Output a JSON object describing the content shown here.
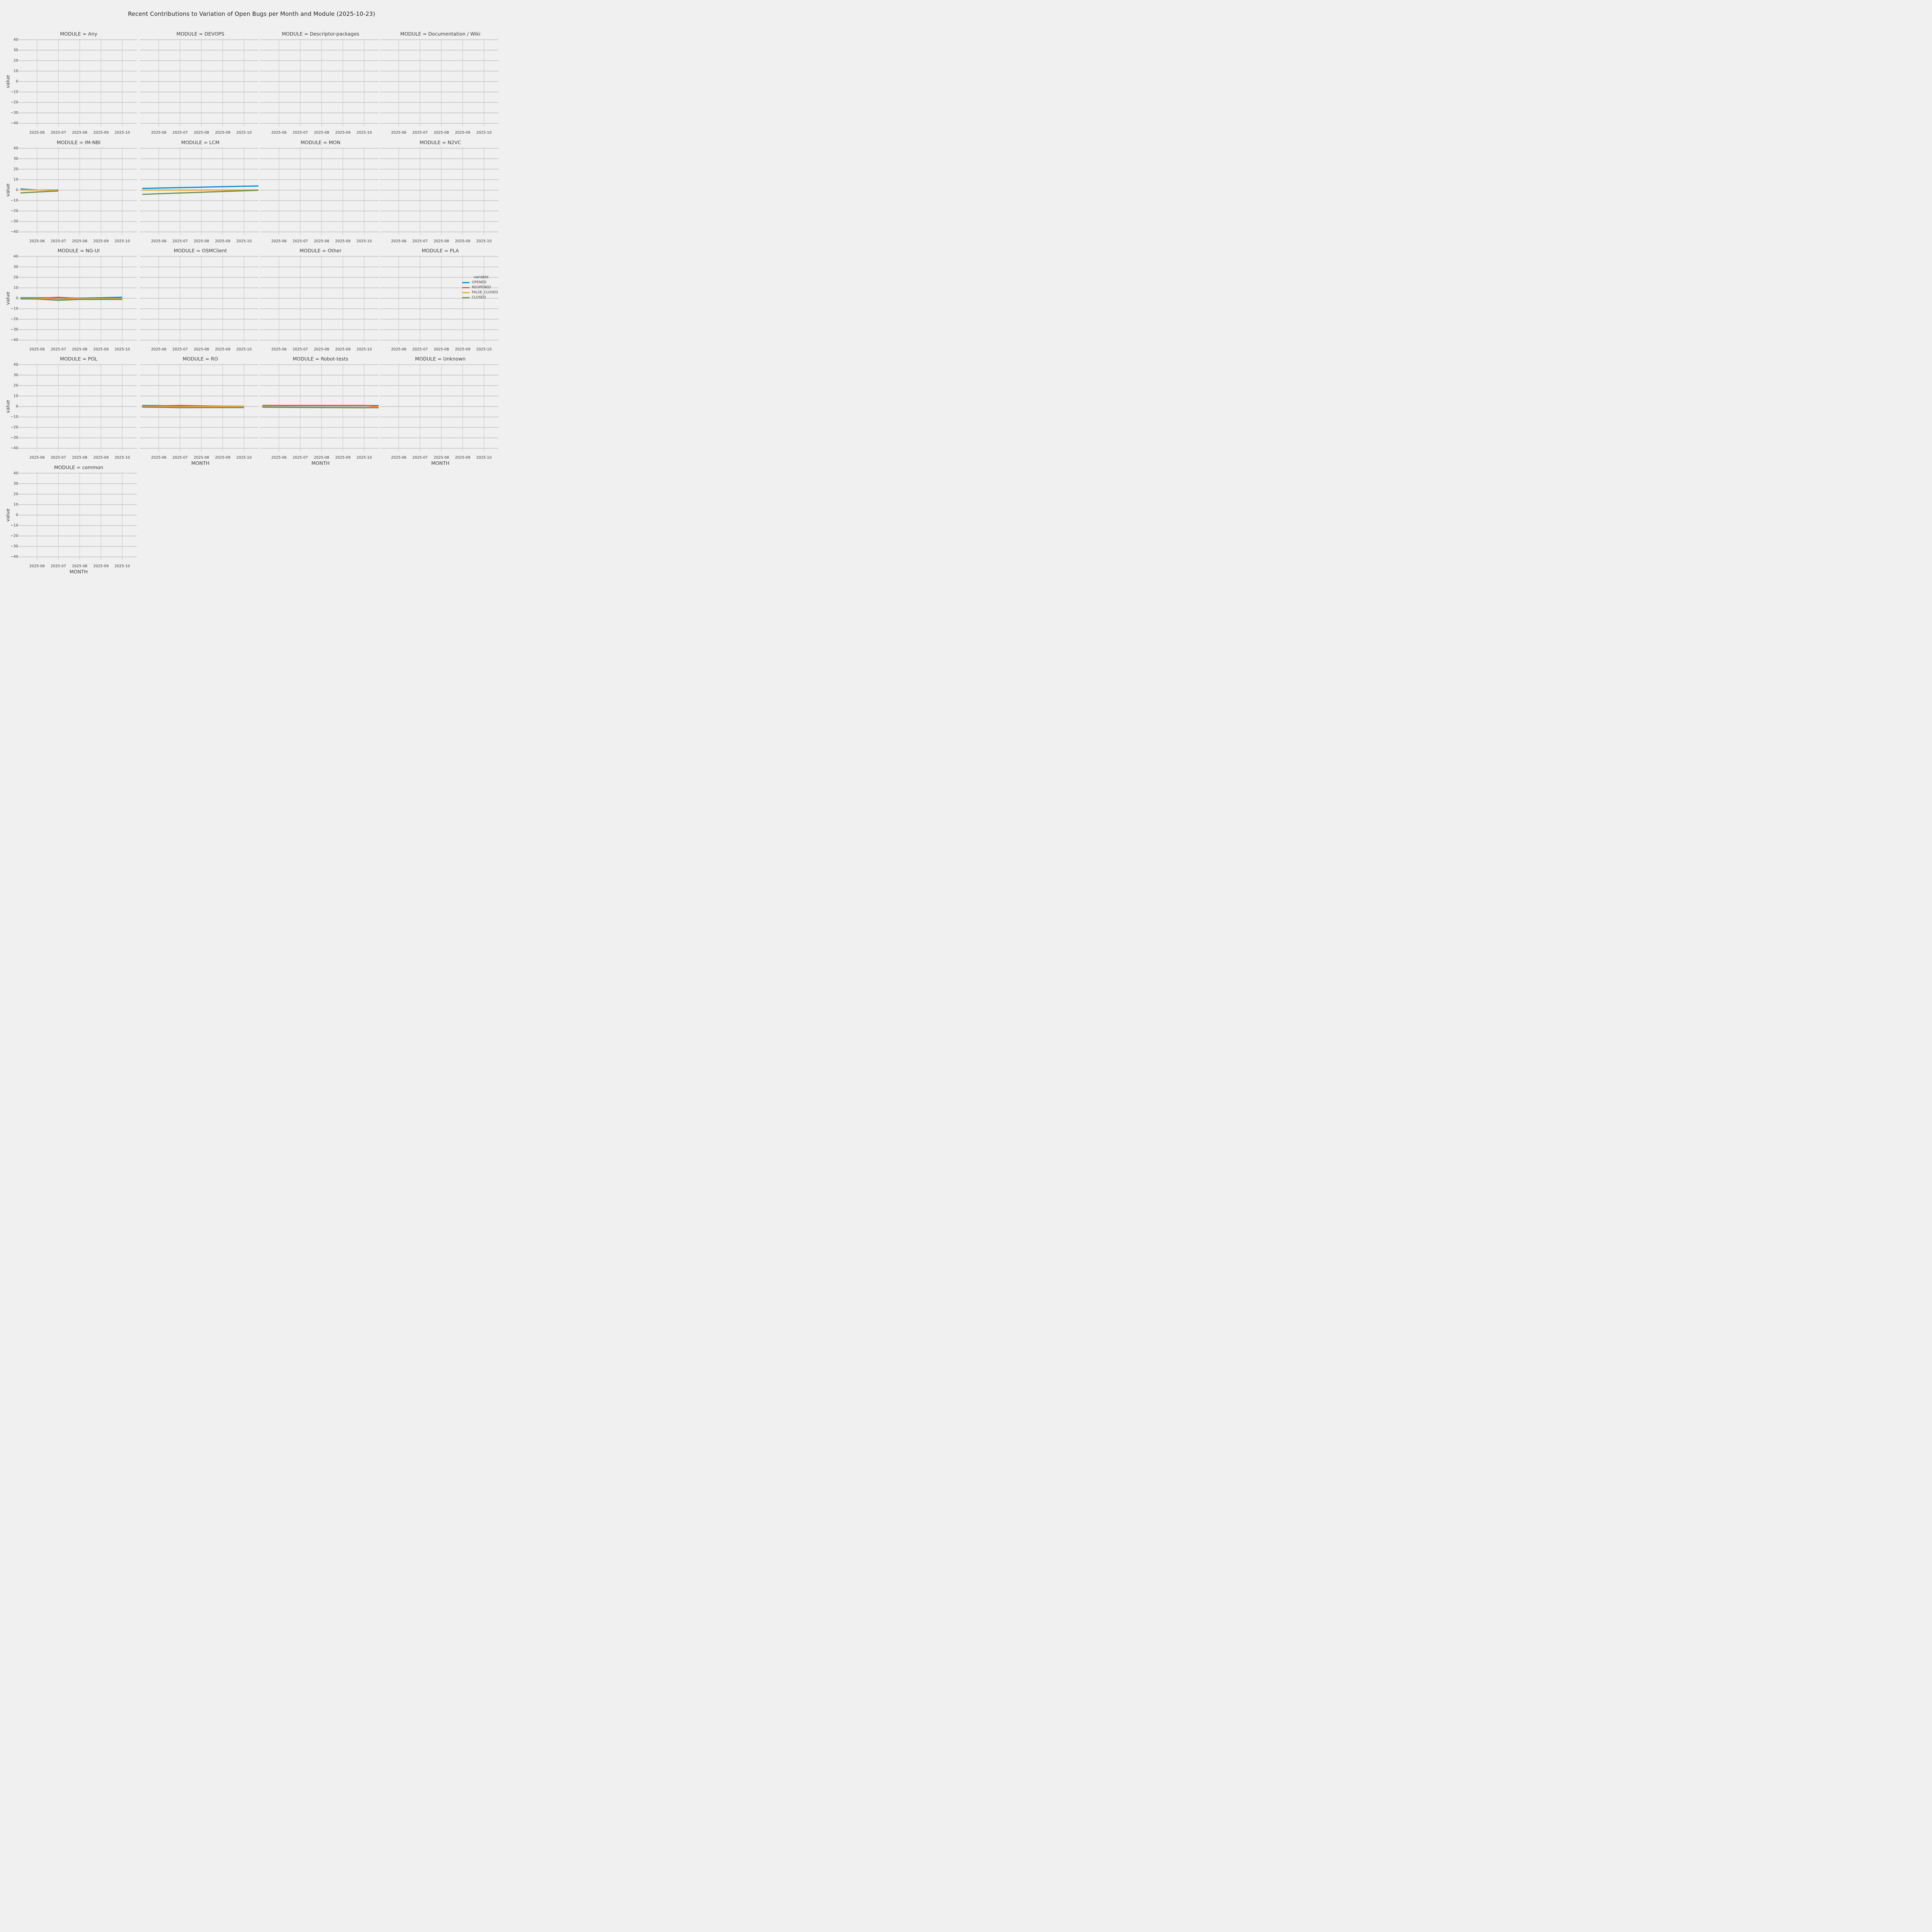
{
  "title": "Recent Contributions to Variation of Open Bugs per Month and Module (2025-10-23)",
  "style": {
    "background": "#f0f0f0",
    "grid_color": "#cbcbcb",
    "text_color": "#3c3c3c",
    "series_colors": {
      "OPENED": "#008fd5",
      "REOPENED": "#fc4f30",
      "FALSE_CLOSED": "#e5ae38",
      "CLOSED": "#6d904f"
    }
  },
  "legend": {
    "title": "variable",
    "entries": [
      {
        "label": "OPENED",
        "color": "#008fd5"
      },
      {
        "label": "REOPENED",
        "color": "#fc4f30"
      },
      {
        "label": "FALSE_CLOSED",
        "color": "#e5ae38"
      },
      {
        "label": "CLOSED",
        "color": "#6d904f"
      }
    ]
  },
  "chart_data": {
    "type": "line",
    "title": "Recent Contributions to Variation of Open Bugs per Month and Module (2025-10-23)",
    "xlabel": "MONTH",
    "ylabel": "value",
    "ylim": [
      -41,
      41
    ],
    "yticks": [
      40,
      30,
      20,
      10,
      0,
      -10,
      -20,
      -30,
      -40
    ],
    "ytick_labels": [
      "40",
      "30",
      "20",
      "10",
      "0",
      "−10",
      "−20",
      "−30",
      "−40"
    ],
    "xticks": [
      "2025-06",
      "2025-07",
      "2025-08",
      "2025-09",
      "2025-10"
    ],
    "x_unit": "month index: 0=2025-05, 1=2025-06, 2=2025-07, 3=2025-08, 4=2025-09, 5=2025-10, 5.7=2025-10-23 (lines clipped at axes edges)",
    "series_names": [
      "OPENED",
      "REOPENED",
      "FALSE_CLOSED",
      "CLOSED"
    ],
    "grid": true,
    "legend_position": "right of PLA facet",
    "facets": [
      {
        "module": "Any",
        "title": "MODULE = Any",
        "series": {}
      },
      {
        "module": "DEVOPS",
        "title": "MODULE = DEVOPS",
        "series": {}
      },
      {
        "module": "Descriptor-packages",
        "title": "MODULE = Descriptor-packages",
        "series": {}
      },
      {
        "module": "Documentation / Wiki",
        "title": "MODULE = Documentation / Wiki",
        "series": {}
      },
      {
        "module": "IM-NBI",
        "title": "MODULE = IM-NBI",
        "series": {
          "OPENED": [
            [
              0,
              1.4
            ],
            [
              1,
              0.1
            ],
            [
              2,
              0
            ]
          ],
          "REOPENED": [
            [
              0,
              0.2
            ],
            [
              1,
              0
            ],
            [
              2,
              -0.2
            ]
          ],
          "FALSE_CLOSED": [
            [
              0,
              0.2
            ],
            [
              1,
              0.05
            ],
            [
              2,
              -0.4
            ]
          ],
          "CLOSED": [
            [
              0,
              -2.9
            ],
            [
              1,
              -1.8
            ],
            [
              2,
              -0.8
            ]
          ]
        }
      },
      {
        "module": "LCM",
        "title": "MODULE = LCM",
        "series": {
          "OPENED": [
            [
              0,
              1.5
            ],
            [
              5.7,
              4.0
            ]
          ],
          "REOPENED": [
            [
              0,
              0
            ],
            [
              5.7,
              0
            ]
          ],
          "FALSE_CLOSED": [
            [
              0,
              0.05
            ],
            [
              5.7,
              0.15
            ]
          ],
          "CLOSED": [
            [
              0,
              -4.2
            ],
            [
              5.7,
              -0.1
            ]
          ]
        }
      },
      {
        "module": "MON",
        "title": "MODULE = MON",
        "series": {}
      },
      {
        "module": "N2VC",
        "title": "MODULE = N2VC",
        "series": {}
      },
      {
        "module": "NG-UI",
        "title": "MODULE = NG-UI",
        "series": {
          "OPENED": [
            [
              0,
              0.55
            ],
            [
              1,
              0.5
            ],
            [
              2,
              0.5
            ],
            [
              3,
              0.15
            ],
            [
              4,
              0.5
            ],
            [
              5,
              1.0
            ]
          ],
          "REOPENED": [
            [
              0,
              0.1
            ],
            [
              1,
              0
            ],
            [
              2,
              0.95
            ],
            [
              3,
              -0.2
            ],
            [
              4,
              -0.25
            ],
            [
              5,
              -0.25
            ]
          ],
          "FALSE_CLOSED": [
            [
              0,
              0
            ],
            [
              1,
              -0.15
            ],
            [
              2,
              -0.9
            ],
            [
              3,
              -0.35
            ],
            [
              4,
              -0.35
            ],
            [
              5,
              -0.3
            ]
          ],
          "CLOSED": [
            [
              0,
              -0.5
            ],
            [
              1,
              -0.65
            ],
            [
              2,
              -1.9
            ],
            [
              3,
              -1.05
            ],
            [
              4,
              -1.0
            ],
            [
              5,
              -1.0
            ]
          ]
        }
      },
      {
        "module": "OSMClient",
        "title": "MODULE = OSMClient",
        "series": {}
      },
      {
        "module": "Other",
        "title": "MODULE = Other",
        "series": {}
      },
      {
        "module": "PLA",
        "title": "MODULE = PLA",
        "series": {}
      },
      {
        "module": "POL",
        "title": "MODULE = POL",
        "series": {}
      },
      {
        "module": "RO",
        "title": "MODULE = RO",
        "series": {
          "OPENED": [
            [
              0,
              1.0
            ],
            [
              1,
              0.85
            ],
            [
              2,
              0.4
            ],
            [
              3,
              0.1
            ],
            [
              4,
              0.05
            ],
            [
              5,
              0.05
            ]
          ],
          "REOPENED": [
            [
              0,
              0.5
            ],
            [
              1,
              0.6
            ],
            [
              2,
              1.05
            ],
            [
              3,
              0.6
            ],
            [
              4,
              0.35
            ],
            [
              5,
              0.25
            ]
          ],
          "FALSE_CLOSED": [
            [
              0,
              0
            ],
            [
              1,
              -0.1
            ],
            [
              2,
              -0.35
            ],
            [
              3,
              -0.15
            ],
            [
              4,
              0
            ],
            [
              5,
              0.15
            ]
          ],
          "CLOSED": [
            [
              0,
              -0.55
            ],
            [
              1,
              -0.75
            ],
            [
              2,
              -1.1
            ],
            [
              3,
              -1.05
            ],
            [
              4,
              -1.0
            ],
            [
              5,
              -1.0
            ]
          ]
        }
      },
      {
        "module": "Robot-tests",
        "title": "MODULE = Robot-tests",
        "series": {
          "OPENED": [
            [
              0,
              0.9
            ],
            [
              5,
              0.9
            ],
            [
              5.7,
              0.9
            ]
          ],
          "REOPENED": [
            [
              0,
              1.0
            ],
            [
              5,
              1.0
            ],
            [
              5.7,
              0.25
            ]
          ],
          "FALSE_CLOSED": [
            [
              0,
              -0.75
            ],
            [
              3,
              -1.05
            ],
            [
              5,
              -1.3
            ],
            [
              5.7,
              -0.1
            ]
          ],
          "CLOSED": [
            [
              0,
              -0.6
            ],
            [
              3,
              -0.95
            ],
            [
              5,
              -1.1
            ],
            [
              5.7,
              -1.15
            ]
          ]
        }
      },
      {
        "module": "Unknown",
        "title": "MODULE = Unknown",
        "series": {}
      },
      {
        "module": "common",
        "title": "MODULE = common",
        "series": {}
      }
    ]
  }
}
